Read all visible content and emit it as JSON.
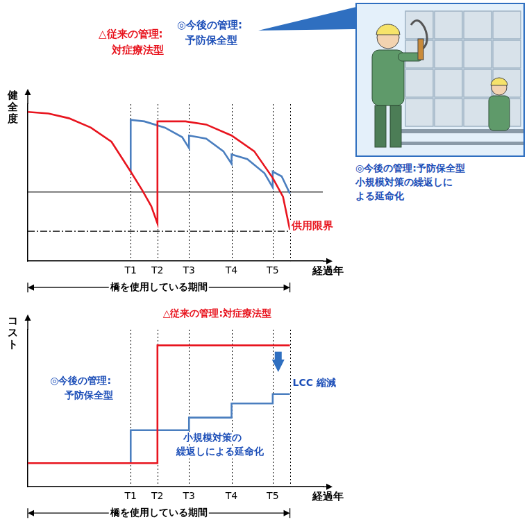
{
  "chart_data": [
    {
      "type": "line",
      "y_label": "健全度",
      "x_label": "経過年",
      "period": {
        "label": "橋を使用している期間",
        "x": [
          0,
          382
        ]
      },
      "xlim": [
        0,
        430
      ],
      "xticks": [
        {
          "value": 150,
          "label": "T1"
        },
        {
          "value": 189,
          "label": "T2"
        },
        {
          "value": 235,
          "label": "T3"
        },
        {
          "value": 297,
          "label": "T4"
        },
        {
          "value": 357,
          "label": "T5"
        }
      ],
      "ylim": [
        0,
        100
      ],
      "grid": true,
      "tick_labels": "x",
      "series": [
        {
          "color": "#e8141e",
          "x": [
            0,
            30,
            60,
            92,
            122,
            150,
            167,
            180,
            189,
            189,
            230,
            260,
            297,
            330,
            357,
            372,
            382
          ],
          "values": [
            95,
            94,
            91,
            85,
            76,
            57,
            45,
            35,
            24,
            89,
            89,
            87,
            80,
            70,
            53,
            41,
            20
          ]
        },
        {
          "color": "#4a7ebf",
          "x": [
            150,
            150,
            170,
            200,
            225,
            235,
            235,
            260,
            285,
            297,
            297,
            320,
            345,
            357,
            357,
            370,
            382
          ],
          "values": [
            57,
            90,
            89,
            85,
            79,
            72,
            80,
            78,
            70,
            62,
            68,
            65,
            56,
            47,
            57,
            54,
            43
          ]
        },
        {
          "color": "#000000",
          "x": [
            0,
            430
          ],
          "values": [
            44,
            44
          ],
          "line_style": "solid"
        },
        {
          "color": "#000000",
          "x": [
            0,
            430
          ],
          "values": [
            19,
            19
          ],
          "line_style": "dashdot"
        }
      ],
      "annotations": [
        {
          "text": "△従来の管理:",
          "color": "#e8141e"
        },
        {
          "text": "対症療法型",
          "color": "#e8141e"
        },
        {
          "text": "◎今後の管理:",
          "color": "#1d4fb8"
        },
        {
          "text": "予防保全型",
          "color": "#1d4fb8"
        },
        {
          "text": "供用限界",
          "color": "#e8141e"
        }
      ]
    },
    {
      "type": "line",
      "y_label": "コスト",
      "x_label": "経過年",
      "period": {
        "label": "橋を使用している期間",
        "x": [
          0,
          382
        ]
      },
      "xlim": [
        0,
        430
      ],
      "xticks": [
        {
          "value": 150,
          "label": "T1"
        },
        {
          "value": 189,
          "label": "T2"
        },
        {
          "value": 235,
          "label": "T3"
        },
        {
          "value": 297,
          "label": "T4"
        },
        {
          "value": 357,
          "label": "T5"
        }
      ],
      "ylim": [
        0,
        100
      ],
      "grid": true,
      "tick_labels": "x",
      "series": [
        {
          "color": "#e8141e",
          "x": [
            0,
            189,
            189,
            382
          ],
          "values": [
            15,
            15,
            90,
            90
          ]
        },
        {
          "color": "#4a7ebf",
          "x": [
            150,
            150,
            235,
            235,
            297,
            297,
            357,
            357,
            382
          ],
          "values": [
            15,
            36,
            36,
            44,
            44,
            53,
            53,
            59,
            59
          ]
        }
      ],
      "annotations": [
        {
          "text": "△従来の管理:対症療法型",
          "color": "#e8141e"
        },
        {
          "text": "◎今後の管理:",
          "color": "#1d4fb8"
        },
        {
          "text": "予防保全型",
          "color": "#1d4fb8"
        },
        {
          "text": "小規模対策の",
          "color": "#1d4fb8"
        },
        {
          "text": "繰返しによる延命化",
          "color": "#1d4fb8"
        },
        {
          "text": "LCC 縮減",
          "color": "#1d4fb8"
        }
      ]
    }
  ],
  "illustration": {
    "caption": [
      "◎今後の管理:予防保全型",
      "小規模対策の繰返しに",
      "よる延命化"
    ]
  }
}
